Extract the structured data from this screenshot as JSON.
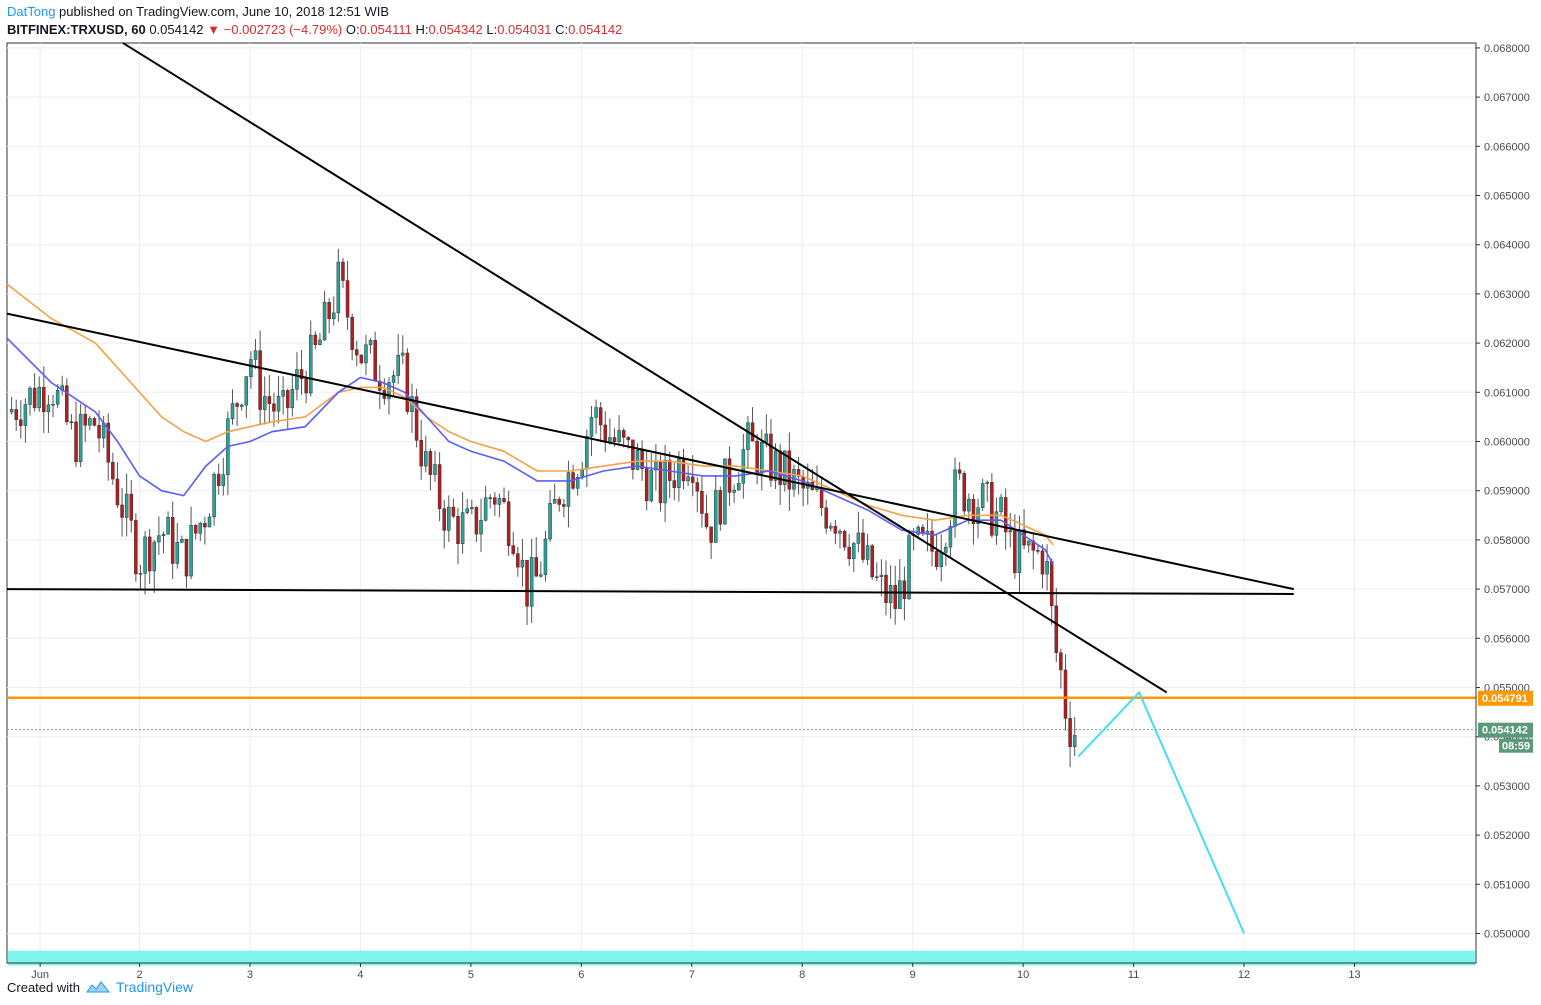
{
  "header": {
    "user": "DatTong",
    "published": "published on TradingView.com, June 10, 2018 12:51 WIB",
    "symbol": "BITFINEX:TRXUSD, 60",
    "last": "0.054142",
    "change": "−0.002723 (−4.79%)",
    "o_label": "O:",
    "o_value": "0.054111",
    "h_label": "H:",
    "h_value": "0.054342",
    "l_label": "L:",
    "l_value": "0.054031",
    "c_label": "C:",
    "c_value": "0.054142"
  },
  "footer": {
    "created": "Created with",
    "brand": "TradingView"
  },
  "colors": {
    "up": "#26a69a",
    "down": "#b71c1c",
    "wick": "#555555",
    "ema_fast": "#5b5ef5",
    "ema_slow": "#f5a04a",
    "trend": "#000000",
    "resistance": "#ff9800",
    "projection": "#40e0f0",
    "support_zone": "#7ff5ee",
    "last_price": "#5a9a7a",
    "grid": "#eeeeee"
  },
  "chart_data": {
    "type": "candlestick",
    "x_domain": [
      -0.2,
      13.1
    ],
    "ylim": [
      0.0494,
      0.0681
    ],
    "y_ticks": [
      "0.068000",
      "0.067000",
      "0.066000",
      "0.065000",
      "0.064000",
      "0.063000",
      "0.062000",
      "0.061000",
      "0.060000",
      "0.059000",
      "0.058000",
      "0.057000",
      "0.056000",
      "0.055000",
      "0.054000",
      "0.053000",
      "0.052000",
      "0.051000",
      "0.050000"
    ],
    "x_ticks": [
      {
        "x": 0.1,
        "label": "Jun"
      },
      {
        "x": 1.0,
        "label": "2"
      },
      {
        "x": 2.0,
        "label": "3"
      },
      {
        "x": 3.0,
        "label": "4"
      },
      {
        "x": 4.0,
        "label": "5"
      },
      {
        "x": 5.0,
        "label": "6"
      },
      {
        "x": 6.0,
        "label": "7"
      },
      {
        "x": 7.0,
        "label": "8"
      },
      {
        "x": 8.0,
        "label": "9"
      },
      {
        "x": 9.0,
        "label": "10"
      },
      {
        "x": 10.0,
        "label": "11"
      },
      {
        "x": 11.0,
        "label": "12"
      },
      {
        "x": 12.0,
        "label": "13"
      }
    ],
    "path_points": [
      [
        -0.2,
        0.0606
      ],
      [
        0.2,
        0.0612
      ],
      [
        0.4,
        0.06
      ],
      [
        0.6,
        0.0604
      ],
      [
        0.8,
        0.059
      ],
      [
        1.0,
        0.0576
      ],
      [
        1.05,
        0.0578
      ],
      [
        1.2,
        0.0582
      ],
      [
        1.4,
        0.0576
      ],
      [
        1.6,
        0.0586
      ],
      [
        1.8,
        0.0602
      ],
      [
        2.0,
        0.0618
      ],
      [
        2.1,
        0.061
      ],
      [
        2.3,
        0.0605
      ],
      [
        2.4,
        0.0611
      ],
      [
        2.6,
        0.0618
      ],
      [
        2.8,
        0.0632
      ],
      [
        3.0,
        0.0618
      ],
      [
        3.2,
        0.0614
      ],
      [
        3.4,
        0.0613
      ],
      [
        3.6,
        0.0594
      ],
      [
        3.8,
        0.0584
      ],
      [
        4.0,
        0.0582
      ],
      [
        4.2,
        0.059
      ],
      [
        4.4,
        0.0582
      ],
      [
        4.5,
        0.057
      ],
      [
        4.6,
        0.0572
      ],
      [
        4.8,
        0.059
      ],
      [
        5.0,
        0.0598
      ],
      [
        5.1,
        0.0606
      ],
      [
        5.3,
        0.06
      ],
      [
        5.5,
        0.0596
      ],
      [
        5.7,
        0.059
      ],
      [
        5.9,
        0.0596
      ],
      [
        6.0,
        0.0598
      ],
      [
        6.15,
        0.0582
      ],
      [
        6.3,
        0.0591
      ],
      [
        6.5,
        0.0599
      ],
      [
        6.7,
        0.0596
      ],
      [
        6.9,
        0.0592
      ],
      [
        7.1,
        0.0588
      ],
      [
        7.3,
        0.0585
      ],
      [
        7.5,
        0.0578
      ],
      [
        7.7,
        0.057
      ],
      [
        7.85,
        0.0567
      ],
      [
        8.0,
        0.0578
      ],
      [
        8.2,
        0.0578
      ],
      [
        8.3,
        0.0584
      ],
      [
        8.4,
        0.0591
      ],
      [
        8.6,
        0.0588
      ],
      [
        8.8,
        0.0584
      ],
      [
        8.9,
        0.0578
      ],
      [
        9.0,
        0.0577
      ],
      [
        9.2,
        0.0577
      ],
      [
        9.25,
        0.0566
      ],
      [
        9.3,
        0.0557
      ],
      [
        9.35,
        0.0552
      ],
      [
        9.4,
        0.0543
      ],
      [
        9.48,
        0.0541
      ]
    ],
    "fast_ma": [
      [
        -0.2,
        0.0621
      ],
      [
        0.2,
        0.0612
      ],
      [
        0.6,
        0.0606
      ],
      [
        0.8,
        0.06
      ],
      [
        1.0,
        0.0593
      ],
      [
        1.2,
        0.059
      ],
      [
        1.4,
        0.0589
      ],
      [
        1.6,
        0.0595
      ],
      [
        1.8,
        0.0599
      ],
      [
        2.0,
        0.06
      ],
      [
        2.2,
        0.0602
      ],
      [
        2.5,
        0.0603
      ],
      [
        2.8,
        0.061
      ],
      [
        3.0,
        0.0613
      ],
      [
        3.2,
        0.0612
      ],
      [
        3.4,
        0.061
      ],
      [
        3.6,
        0.0605
      ],
      [
        3.8,
        0.06
      ],
      [
        4.0,
        0.0598
      ],
      [
        4.3,
        0.0596
      ],
      [
        4.6,
        0.0592
      ],
      [
        4.9,
        0.0592
      ],
      [
        5.2,
        0.0594
      ],
      [
        5.5,
        0.0595
      ],
      [
        5.8,
        0.0594
      ],
      [
        6.1,
        0.0593
      ],
      [
        6.4,
        0.0593
      ],
      [
        6.7,
        0.0594
      ],
      [
        7.0,
        0.0592
      ],
      [
        7.3,
        0.0589
      ],
      [
        7.6,
        0.0586
      ],
      [
        7.9,
        0.0582
      ],
      [
        8.2,
        0.0581
      ],
      [
        8.5,
        0.0584
      ],
      [
        8.8,
        0.0584
      ],
      [
        9.0,
        0.0581
      ],
      [
        9.2,
        0.0578
      ],
      [
        9.27,
        0.0575
      ]
    ],
    "slow_ma": [
      [
        -0.2,
        0.0632
      ],
      [
        0.2,
        0.0625
      ],
      [
        0.6,
        0.062
      ],
      [
        0.8,
        0.0615
      ],
      [
        1.0,
        0.061
      ],
      [
        1.2,
        0.0605
      ],
      [
        1.4,
        0.0602
      ],
      [
        1.6,
        0.06
      ],
      [
        1.8,
        0.0602
      ],
      [
        2.0,
        0.0603
      ],
      [
        2.2,
        0.0604
      ],
      [
        2.5,
        0.0605
      ],
      [
        2.8,
        0.061
      ],
      [
        3.0,
        0.0611
      ],
      [
        3.2,
        0.0611
      ],
      [
        3.4,
        0.0609
      ],
      [
        3.6,
        0.0605
      ],
      [
        3.8,
        0.0602
      ],
      [
        4.0,
        0.06
      ],
      [
        4.3,
        0.0598
      ],
      [
        4.6,
        0.0594
      ],
      [
        4.9,
        0.0594
      ],
      [
        5.2,
        0.0595
      ],
      [
        5.5,
        0.0596
      ],
      [
        5.8,
        0.0596
      ],
      [
        6.1,
        0.0595
      ],
      [
        6.4,
        0.0595
      ],
      [
        6.7,
        0.0594
      ],
      [
        7.0,
        0.0593
      ],
      [
        7.3,
        0.059
      ],
      [
        7.6,
        0.0587
      ],
      [
        7.9,
        0.0585
      ],
      [
        8.2,
        0.0584
      ],
      [
        8.5,
        0.0585
      ],
      [
        8.8,
        0.0585
      ],
      [
        9.0,
        0.0583
      ],
      [
        9.2,
        0.0581
      ],
      [
        9.27,
        0.0579
      ]
    ],
    "trend_lines": [
      {
        "from": [
          -0.2,
          0.0626
        ],
        "to": [
          11.45,
          0.057
        ]
      },
      {
        "from": [
          0.85,
          0.0681
        ],
        "to": [
          10.3,
          0.0549
        ]
      },
      {
        "from": [
          -0.2,
          0.057
        ],
        "to": [
          11.45,
          0.0569
        ]
      }
    ],
    "resistance_level": 0.054791,
    "resistance_label": "0.054791",
    "last_price_label": "0.054142",
    "countdown_label": "08:59",
    "projection": [
      [
        9.5,
        0.0536
      ],
      [
        10.05,
        0.0549
      ],
      [
        11.0,
        0.05
      ]
    ],
    "support_zone": [
      0.04935,
      0.04965
    ]
  }
}
